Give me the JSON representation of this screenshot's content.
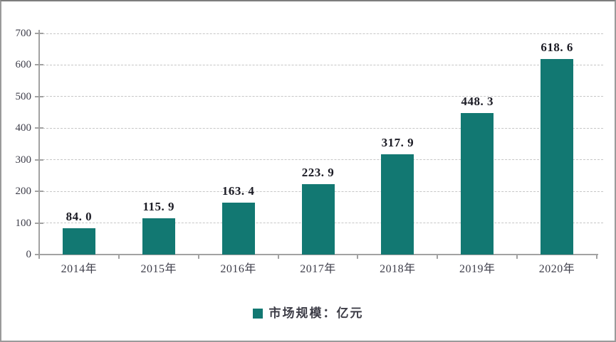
{
  "chart_data": {
    "type": "bar",
    "title": "",
    "categories": [
      "2014年",
      "2015年",
      "2016年",
      "2017年",
      "2018年",
      "2019年",
      "2020年"
    ],
    "series": [
      {
        "name": "市场规模：亿元",
        "values": [
          84.0,
          115.9,
          163.4,
          223.9,
          317.9,
          448.3,
          618.6
        ]
      }
    ],
    "value_labels": [
      "84. 0",
      "115. 9",
      "163. 4",
      "223. 9",
      "317. 9",
      "448. 3",
      "618. 6"
    ],
    "xlabel": "",
    "ylabel": "",
    "ylim": [
      0,
      700
    ],
    "yticks": [
      "0",
      "100",
      "200",
      "300",
      "400",
      "500",
      "600",
      "700"
    ],
    "grid": true,
    "legend": {
      "label": "市场规模：亿元",
      "position": "bottom"
    },
    "colors": {
      "bar": "#127872",
      "value_label": "#1b1b24",
      "tick_label": "#3e3e4a",
      "gridline": "#c6c6c6",
      "axis": "#a2a2a2",
      "legend_text": "#3d3d47",
      "frame_border": "#9a9a9a",
      "background": "#ffffff"
    }
  }
}
